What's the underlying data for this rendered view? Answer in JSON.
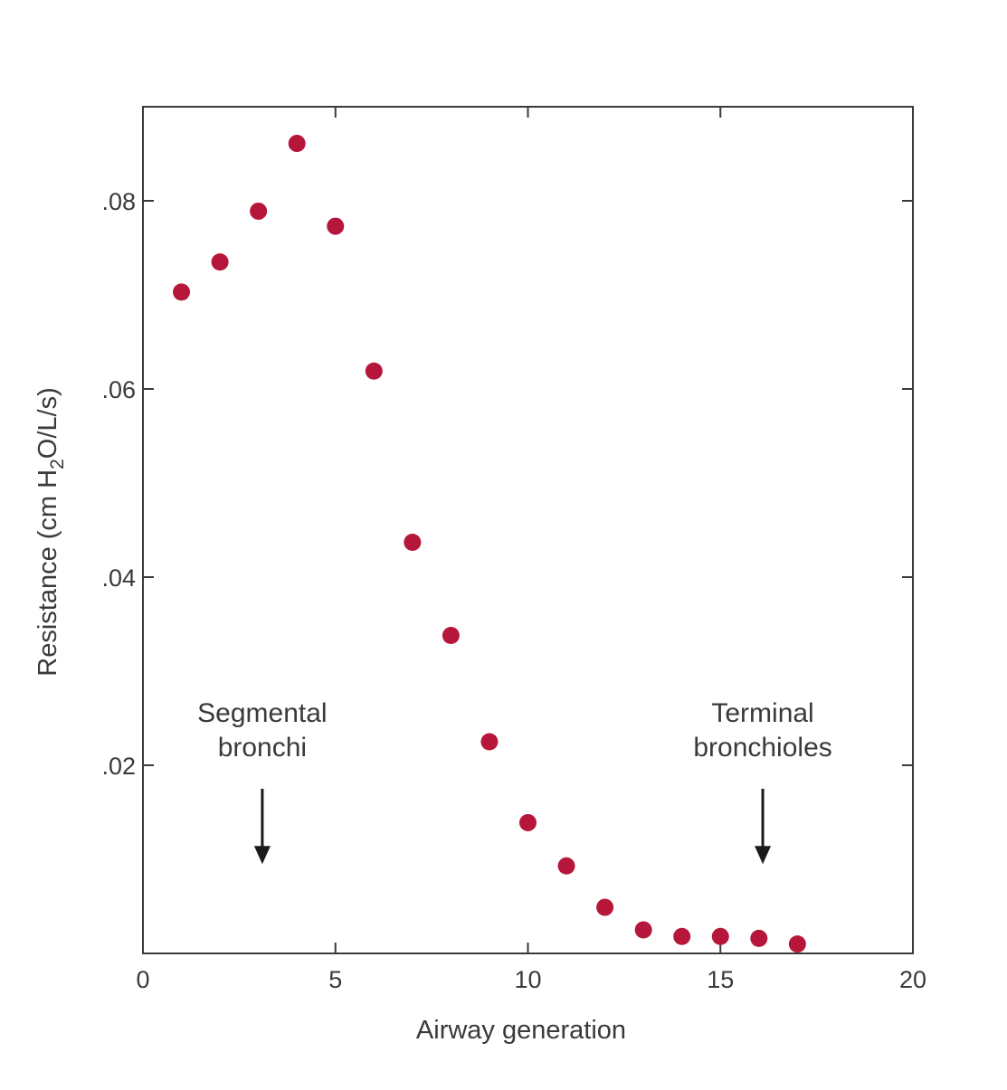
{
  "chart_data": {
    "type": "scatter",
    "xlabel": "Airway generation",
    "ylabel": {
      "prefix": "Resistance (cm H",
      "subscript": "2",
      "suffix": "O/L/s)"
    },
    "xlim": [
      0,
      20
    ],
    "ylim": [
      0,
      0.09
    ],
    "x_ticks": [
      0,
      5,
      10,
      15,
      20
    ],
    "x_tick_labels": [
      "0",
      "5",
      "10",
      "15",
      "20"
    ],
    "y_ticks": [
      0.02,
      0.04,
      0.06,
      0.08
    ],
    "y_tick_labels": [
      ".02",
      ".04",
      ".06",
      ".08"
    ],
    "grid": false,
    "marker_color": "#b5163a",
    "series": [
      {
        "x": [
          1,
          2,
          3,
          4,
          5,
          6,
          7,
          8,
          9,
          10,
          11,
          12,
          13,
          14,
          15,
          16,
          17
        ],
        "y": [
          0.0703,
          0.0735,
          0.0789,
          0.0861,
          0.0773,
          0.0619,
          0.0437,
          0.0338,
          0.0225,
          0.0139,
          0.0093,
          0.0049,
          0.0025,
          0.0018,
          0.0018,
          0.0016,
          0.001
        ]
      }
    ],
    "annotations": [
      {
        "lines": [
          "Segmental",
          "bronchi"
        ],
        "arrow_x": 3.1,
        "arrow_y_top": 0.0175,
        "arrow_y_bottom": 0.0095
      },
      {
        "lines": [
          "Terminal",
          "bronchioles"
        ],
        "arrow_x": 16.1,
        "arrow_y_top": 0.0175,
        "arrow_y_bottom": 0.0095
      }
    ]
  }
}
